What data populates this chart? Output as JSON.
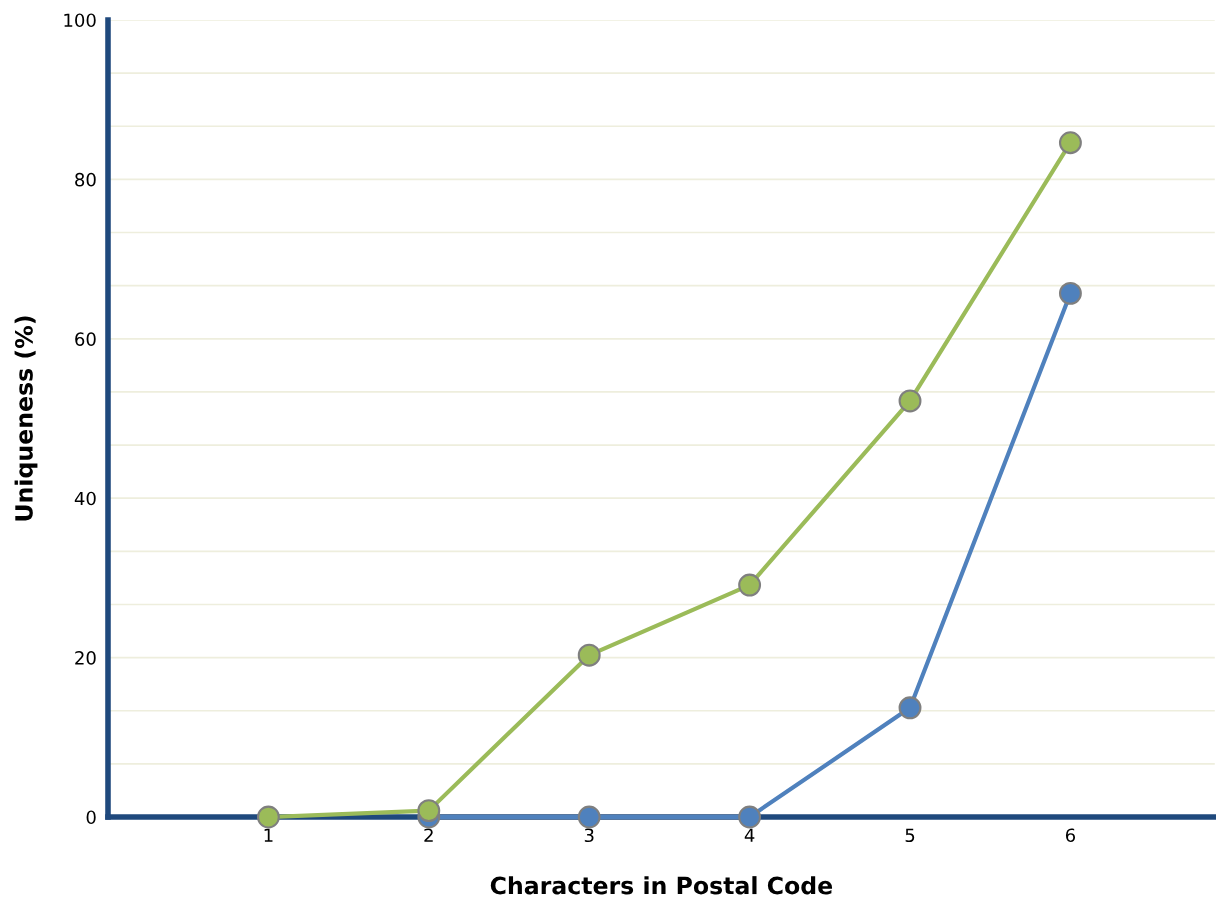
{
  "chart_data": {
    "type": "line",
    "xlabel": "Characters in Postal Code",
    "ylabel": "Uniqueness (%)",
    "x": [
      1,
      2,
      3,
      4,
      5,
      6
    ],
    "series": [
      {
        "color": "#9bbb59",
        "values": [
          0,
          0.8,
          20.3,
          29.1,
          52.2,
          84.6
        ]
      },
      {
        "color": "#4f81bd",
        "values": [
          null,
          0,
          0,
          0,
          13.7,
          65.7
        ]
      }
    ],
    "xlim": [
      0,
      6.9
    ],
    "xticks": [
      1,
      2,
      3,
      4,
      5,
      6
    ],
    "ylim": [
      0,
      100
    ],
    "yticks": [
      0,
      {
        "value": 6.667,
        "label": null
      },
      {
        "value": 13.333,
        "label": null
      },
      20,
      {
        "value": 26.667,
        "label": null
      },
      {
        "value": 33.333,
        "label": null
      },
      40,
      {
        "value": 46.667,
        "label": null
      },
      {
        "value": 53.333,
        "label": null
      },
      60,
      {
        "value": 66.667,
        "label": null
      },
      {
        "value": 73.333,
        "label": null
      },
      80,
      {
        "value": 86.667,
        "label": null
      },
      {
        "value": 93.333,
        "label": null
      },
      100
    ],
    "grid": "y",
    "marker": "circle",
    "line_style": "solid"
  }
}
